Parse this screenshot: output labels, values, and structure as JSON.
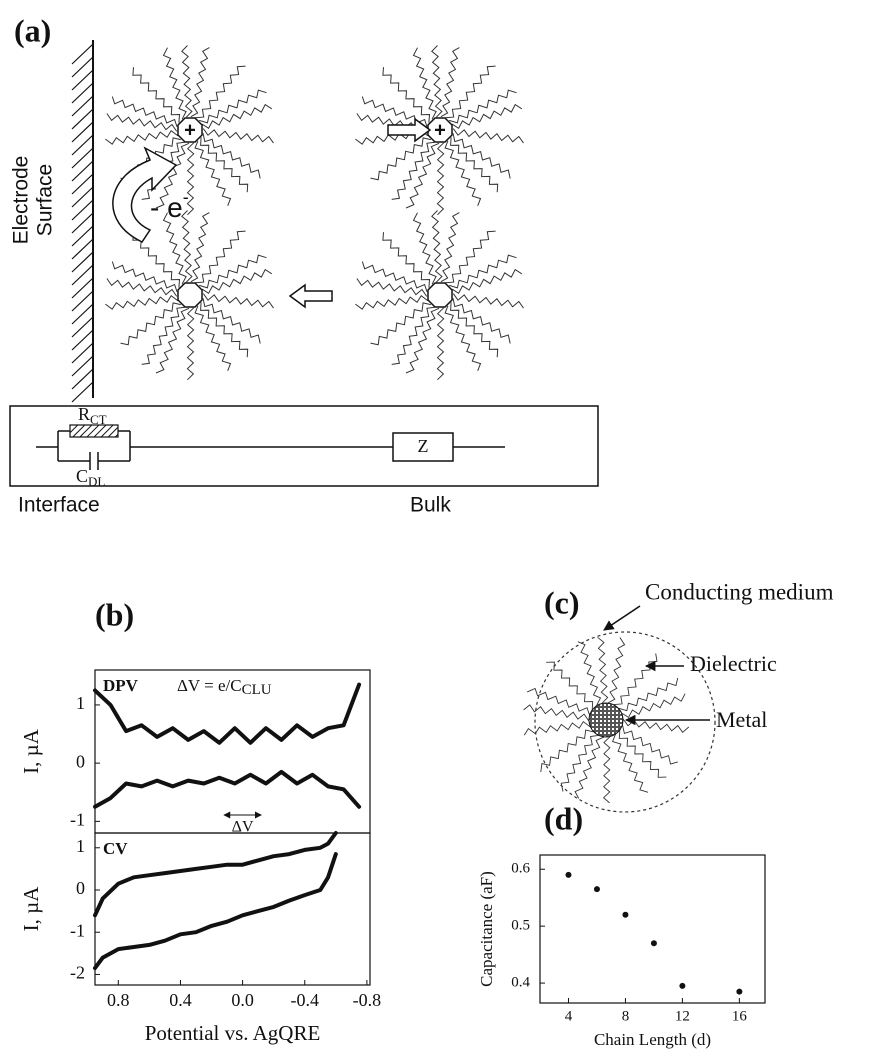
{
  "panel_a": {
    "label": "(a)",
    "electrode": [
      "Electrode",
      "Surface"
    ],
    "charge": "+",
    "electron": "- e",
    "electron_sup": "-",
    "circuit": {
      "r": "R",
      "r_sub": "CT",
      "c": "C",
      "c_sub": "DL",
      "z": "Z",
      "interface": "Interface",
      "bulk": "Bulk"
    }
  },
  "panel_c": {
    "label": "(c)",
    "medium": "Conducting medium",
    "dielectric": "Dielectric",
    "metal": "Metal"
  },
  "chart_data": [
    {
      "type": "line",
      "panel_label": "(b)",
      "title": "DPV",
      "annotation": "ΔV = e/C",
      "annotation_sub": "CLU",
      "arrow_label": "ΔV",
      "ylabel": "I, µA",
      "x": [
        0.95,
        0.85,
        0.75,
        0.65,
        0.55,
        0.45,
        0.35,
        0.25,
        0.15,
        0.05,
        -0.05,
        -0.15,
        -0.25,
        -0.35,
        -0.45,
        -0.55,
        -0.65,
        -0.75
      ],
      "xlim": [
        0.95,
        -0.82
      ],
      "ylim": [
        -1.2,
        1.6
      ],
      "yticks": [
        1,
        0,
        -1
      ],
      "series": [
        {
          "color": "#111111",
          "values": [
            1.25,
            1.0,
            0.55,
            0.65,
            0.45,
            0.6,
            0.4,
            0.55,
            0.35,
            0.6,
            0.35,
            0.6,
            0.4,
            0.65,
            0.45,
            0.6,
            0.65,
            1.35
          ]
        },
        {
          "color": "#111111",
          "values": [
            -0.75,
            -0.6,
            -0.35,
            -0.4,
            -0.3,
            -0.4,
            -0.3,
            -0.35,
            -0.25,
            -0.35,
            -0.2,
            -0.35,
            -0.15,
            -0.35,
            -0.2,
            -0.4,
            -0.45,
            -0.75
          ]
        }
      ]
    },
    {
      "type": "line",
      "title": "CV",
      "ylabel": "I, µA",
      "xlabel": "Potential vs. AgQRE",
      "x": [
        0.95,
        0.9,
        0.8,
        0.7,
        0.6,
        0.5,
        0.4,
        0.3,
        0.2,
        0.1,
        0.0,
        -0.1,
        -0.2,
        -0.3,
        -0.4,
        -0.5,
        -0.55,
        -0.6
      ],
      "xlim": [
        0.95,
        -0.82
      ],
      "xticks": [
        0.8,
        0.4,
        {
          "value": 0,
          "label": "0.0"
        },
        -0.4,
        -0.8
      ],
      "ylim": [
        -2.25,
        1.35
      ],
      "yticks": [
        1,
        0,
        -1,
        -2
      ],
      "series": [
        {
          "color": "#111111",
          "values": [
            -0.6,
            -0.2,
            0.15,
            0.3,
            0.35,
            0.4,
            0.45,
            0.5,
            0.55,
            0.6,
            0.6,
            0.7,
            0.8,
            0.85,
            0.95,
            1.0,
            1.1,
            1.35
          ]
        },
        {
          "color": "#111111",
          "values": [
            -1.85,
            -1.6,
            -1.4,
            -1.35,
            -1.3,
            -1.2,
            -1.05,
            -1.0,
            -0.85,
            -0.75,
            -0.6,
            -0.5,
            -0.4,
            -0.25,
            -0.12,
            0.0,
            0.3,
            0.85
          ]
        }
      ]
    },
    {
      "type": "scatter",
      "panel_label": "(d)",
      "ylabel": "Capacitance (aF)",
      "xlabel": "Chain Length (d)",
      "x": [
        4,
        6,
        8,
        10,
        12,
        16
      ],
      "values": [
        0.59,
        0.565,
        0.52,
        0.47,
        0.395,
        0.385
      ],
      "color": "#111111",
      "xlim": [
        2,
        17.8
      ],
      "xticks": [
        4,
        8,
        12,
        16
      ],
      "ylim": [
        0.365,
        0.625
      ],
      "yticks": [
        0.4,
        0.5,
        0.6
      ]
    }
  ]
}
